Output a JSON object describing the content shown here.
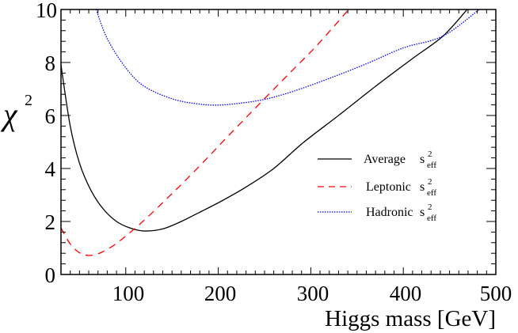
{
  "chart_data": {
    "type": "line",
    "title": "",
    "xlabel": "Higgs mass [GeV]",
    "ylabel": "χ²",
    "xlim": [
      30,
      500
    ],
    "ylim": [
      0,
      10
    ],
    "x_ticks": [
      100,
      200,
      300,
      400,
      500
    ],
    "y_ticks": [
      0,
      2,
      4,
      6,
      8,
      10
    ],
    "grid": false,
    "legend_position": "right-middle inside",
    "series": [
      {
        "name": "Average s²eff",
        "style": "solid",
        "color": "#000000",
        "points": [
          [
            30,
            7.9
          ],
          [
            40,
            5.6
          ],
          [
            50,
            4.2
          ],
          [
            62,
            3.2
          ],
          [
            75,
            2.5
          ],
          [
            90,
            2.0
          ],
          [
            105,
            1.75
          ],
          [
            120,
            1.64
          ],
          [
            140,
            1.72
          ],
          [
            160,
            2.0
          ],
          [
            180,
            2.35
          ],
          [
            204,
            2.78
          ],
          [
            230,
            3.3
          ],
          [
            260,
            4.0
          ],
          [
            292,
            4.98
          ],
          [
            330,
            6.0
          ],
          [
            370,
            7.1
          ],
          [
            410,
            8.15
          ],
          [
            443,
            9.0
          ],
          [
            469,
            10.0
          ]
        ]
      },
      {
        "name": "Leptonic s²eff",
        "style": "dashed",
        "color": "#ff0000",
        "points": [
          [
            30,
            1.76
          ],
          [
            40,
            1.15
          ],
          [
            50,
            0.82
          ],
          [
            59,
            0.72
          ],
          [
            70,
            0.78
          ],
          [
            85,
            1.05
          ],
          [
            100,
            1.45
          ],
          [
            120,
            2.05
          ],
          [
            150,
            3.05
          ],
          [
            180,
            4.1
          ],
          [
            210,
            5.2
          ],
          [
            249,
            6.6
          ],
          [
            280,
            7.7
          ],
          [
            307,
            8.66
          ],
          [
            341,
            10.0
          ]
        ]
      },
      {
        "name": "Hadronic s²eff",
        "style": "dotted",
        "color": "#0000ff",
        "points": [
          [
            68,
            10.0
          ],
          [
            80,
            8.9
          ],
          [
            100,
            7.8
          ],
          [
            120,
            7.1
          ],
          [
            150,
            6.63
          ],
          [
            175,
            6.45
          ],
          [
            197,
            6.39
          ],
          [
            220,
            6.45
          ],
          [
            249,
            6.6
          ],
          [
            280,
            6.9
          ],
          [
            320,
            7.4
          ],
          [
            360,
            7.95
          ],
          [
            400,
            8.55
          ],
          [
            443,
            9.0
          ],
          [
            482,
            10.0
          ]
        ]
      }
    ]
  },
  "axes": {
    "xlabel": "Higgs mass [GeV]",
    "ylabel_main": "χ",
    "ylabel_sup": "2",
    "x_tick_labels": [
      "100",
      "200",
      "300",
      "400",
      "500"
    ],
    "y_tick_labels": [
      "0",
      "2",
      "4",
      "6",
      "8",
      "10"
    ]
  },
  "legend": [
    {
      "label": "Average",
      "symbol": "s",
      "sup": "2",
      "sub": "eff"
    },
    {
      "label": "Leptonic",
      "symbol": "s",
      "sup": "2",
      "sub": "eff"
    },
    {
      "label": "Hadronic",
      "symbol": "s",
      "sup": "2",
      "sub": "eff"
    }
  ]
}
